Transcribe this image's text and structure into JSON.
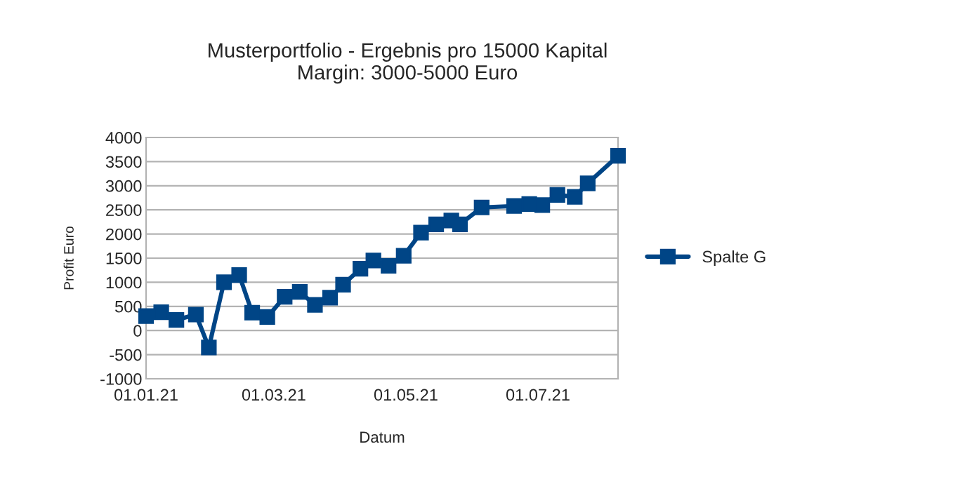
{
  "chart_data": {
    "type": "line",
    "title": "Musterportfolio - Ergebnis pro 15000 Kapital",
    "subtitle": "Margin: 3000-5000 Euro",
    "xlabel": "Datum",
    "ylabel": "Profit Euro",
    "x": [
      "2021-01-01",
      "2021-01-08",
      "2021-01-15",
      "2021-01-24",
      "2021-01-30",
      "2021-02-06",
      "2021-02-13",
      "2021-02-19",
      "2021-02-26",
      "2021-03-06",
      "2021-03-13",
      "2021-03-20",
      "2021-03-27",
      "2021-04-02",
      "2021-04-10",
      "2021-04-16",
      "2021-04-23",
      "2021-04-30",
      "2021-05-08",
      "2021-05-15",
      "2021-05-22",
      "2021-05-26",
      "2021-06-05",
      "2021-06-20",
      "2021-06-27",
      "2021-07-03",
      "2021-07-10",
      "2021-07-18",
      "2021-07-24",
      "2021-08-07"
    ],
    "series": [
      {
        "name": "Spalte G",
        "color": "#004586",
        "values": [
          300,
          380,
          220,
          330,
          -350,
          1000,
          1150,
          370,
          280,
          700,
          800,
          530,
          680,
          950,
          1280,
          1450,
          1340,
          1550,
          2030,
          2200,
          2280,
          2200,
          2550,
          2580,
          2620,
          2600,
          2810,
          2770,
          3050,
          3620
        ]
      }
    ],
    "xlim": [
      "2021-01-01",
      "2021-08-07"
    ],
    "xticks": [
      {
        "value": "2021-01-01",
        "label": "01.01.21"
      },
      {
        "value": "2021-03-01",
        "label": "01.03.21"
      },
      {
        "value": "2021-05-01",
        "label": "01.05.21"
      },
      {
        "value": "2021-07-01",
        "label": "01.07.21"
      }
    ],
    "ylim": [
      -1000,
      4000
    ],
    "yticks": [
      -1000,
      -500,
      0,
      500,
      1000,
      1500,
      2000,
      2500,
      3000,
      3500,
      4000
    ],
    "grid": "y",
    "legend": "right",
    "marker": "square",
    "line_style": "solid"
  }
}
